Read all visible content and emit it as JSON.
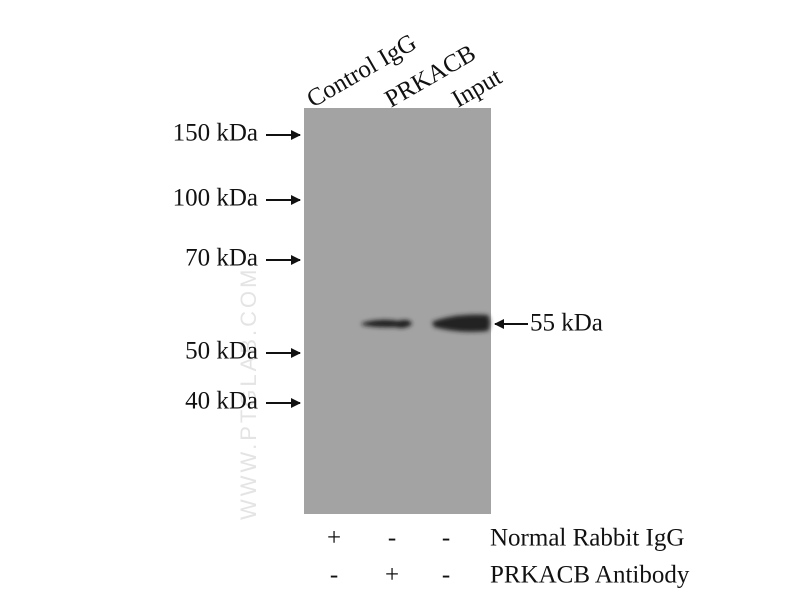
{
  "lanes": [
    "Control IgG",
    "PRKACB",
    "Input"
  ],
  "markers": [
    "150 kDa",
    "100 kDa",
    "70 kDa",
    "50 kDa",
    "40 kDa"
  ],
  "band_label": "55 kDa",
  "watermark": "WWW.PTGLAB.COM",
  "table": {
    "rows": [
      {
        "symbols": [
          "+",
          "-",
          "-"
        ],
        "label": "Normal Rabbit IgG"
      },
      {
        "symbols": [
          "-",
          "+",
          "-"
        ],
        "label": "PRKACB Antibody"
      }
    ]
  }
}
